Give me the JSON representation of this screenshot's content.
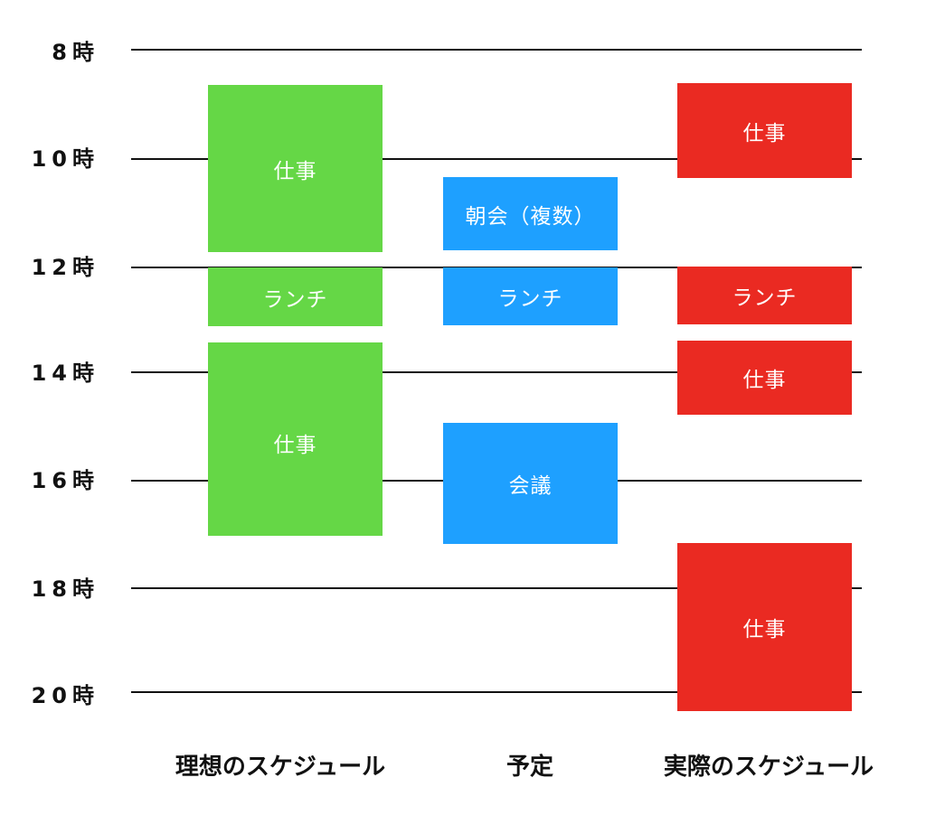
{
  "hours": [
    "8時",
    "10時",
    "12時",
    "14時",
    "16時",
    "18時",
    "20時"
  ],
  "columns": {
    "ideal": {
      "title": "理想のスケジュール",
      "color": "#65d746",
      "blocks": [
        {
          "label": "仕事",
          "start": 9.3,
          "end": 11.7
        },
        {
          "label": "ランチ",
          "start": 12.0,
          "end": 13.1
        },
        {
          "label": "仕事",
          "start": 13.4,
          "end": 17.0
        }
      ]
    },
    "planned": {
      "title": "予定",
      "color": "#1ea0ff",
      "blocks": [
        {
          "label": "朝会（複数）",
          "start": 10.35,
          "end": 11.7
        },
        {
          "label": "ランチ",
          "start": 12.0,
          "end": 13.1
        },
        {
          "label": "会議",
          "start": 14.9,
          "end": 17.2
        }
      ]
    },
    "actual": {
      "title": "実際のスケジュール",
      "color": "#ea2a22",
      "blocks": [
        {
          "label": "仕事",
          "start": 9.25,
          "end": 10.35
        },
        {
          "label": "ランチ",
          "start": 12.0,
          "end": 13.1
        },
        {
          "label": "仕事",
          "start": 13.4,
          "end": 14.8
        },
        {
          "label": "仕事",
          "start": 17.2,
          "end": 20.4
        }
      ]
    }
  }
}
